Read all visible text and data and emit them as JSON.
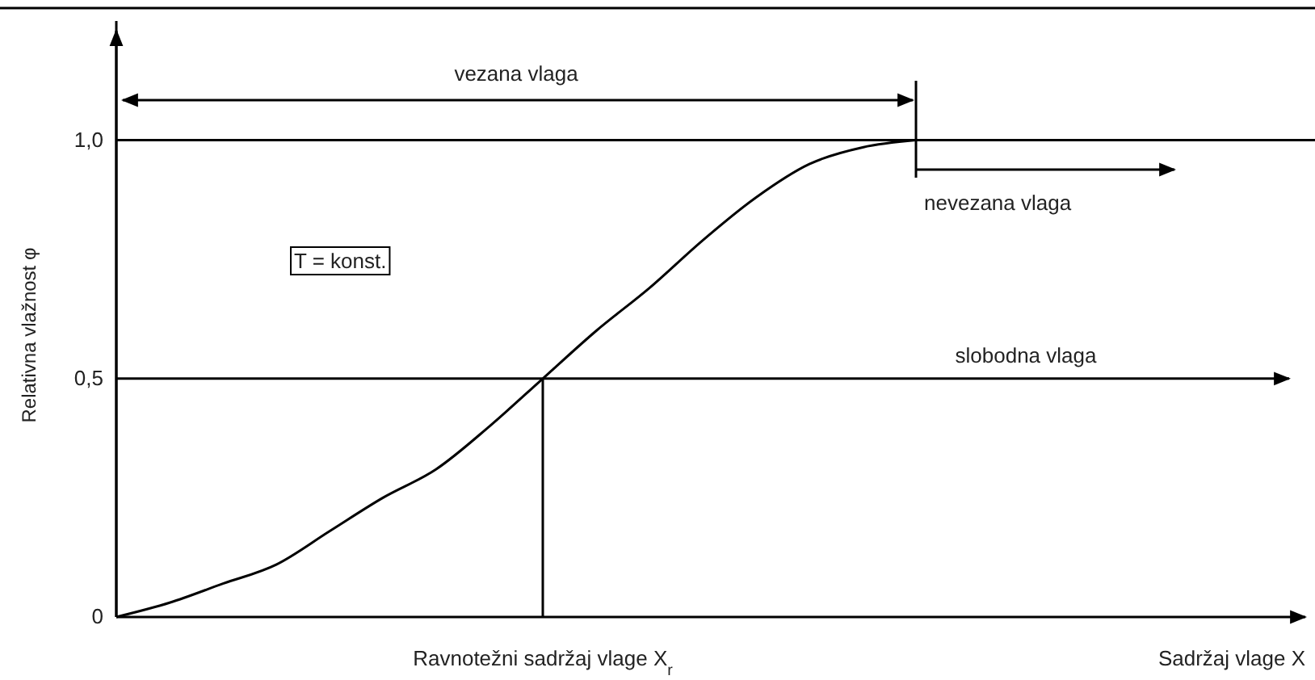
{
  "chart_data": {
    "type": "line",
    "ylabel": "Relativna vlažnost φ",
    "xlabel": "Sadržaj vlage X",
    "categories": [
      null,
      null,
      null,
      null,
      null,
      null,
      null,
      null,
      "Ravnotežni sadržaj vlage X$_{r}$",
      null,
      null,
      null,
      null,
      null,
      null,
      null,
      null,
      null,
      null,
      null,
      null,
      null,
      null
    ],
    "series": [
      {
        "color": "#000000",
        "values": [
          0,
          0.03,
          0.07,
          0.11,
          0.18,
          0.25,
          0.31,
          0.4,
          0.5,
          0.6,
          0.69,
          0.79,
          0.88,
          0.95,
          0.985,
          1.0,
          null,
          null,
          null,
          null,
          null,
          null,
          null
        ]
      }
    ],
    "ylim": [
      0,
      1.25
    ],
    "yticks": [
      0,
      {
        "value": 0.5,
        "label": "0,5"
      },
      {
        "value": 1,
        "label": "1,0"
      }
    ],
    "ref_lines": [
      {
        "axis": "y",
        "value": 1
      },
      {
        "axis": "y",
        "value": 0.5,
        "label": "slobodna vlaga"
      }
    ],
    "annotations": [
      "vezana vlaga",
      "nevezana vlaga",
      "T = konst."
    ],
    "marker": "none",
    "line_style": "solid"
  }
}
